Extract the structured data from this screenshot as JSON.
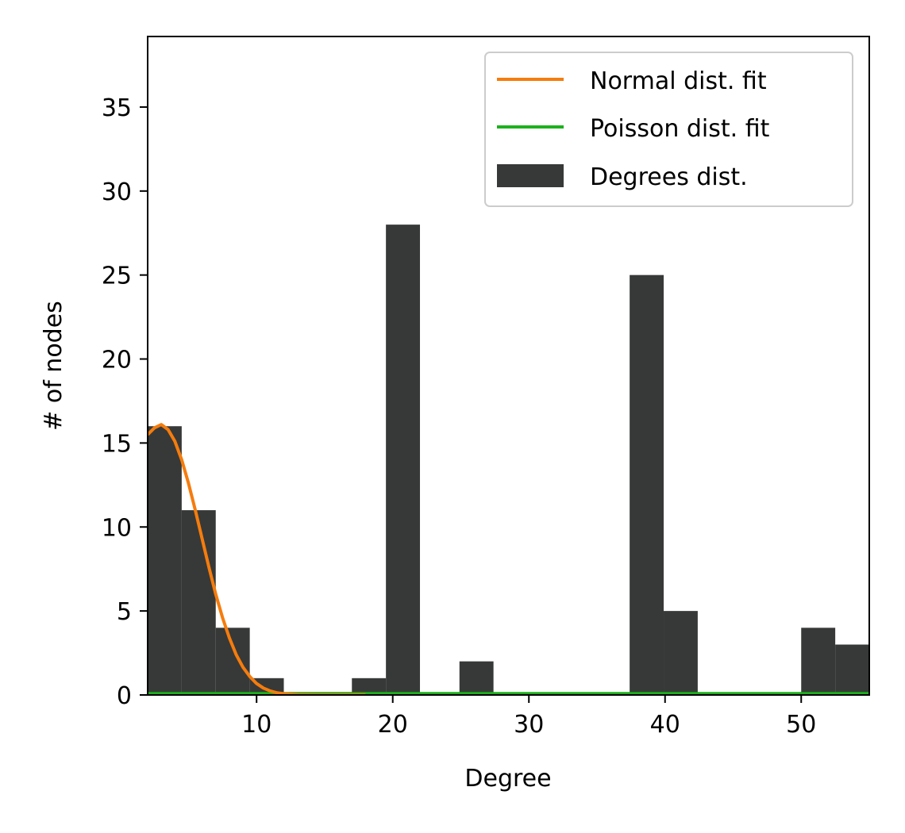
{
  "chart_data": {
    "type": "bar",
    "title": "",
    "xlabel": "Degree",
    "ylabel": "# of nodes",
    "xlim": [
      2,
      55
    ],
    "ylim": [
      0,
      39.2
    ],
    "xticks": [
      "10",
      "20",
      "30",
      "40",
      "50"
    ],
    "yticks": [
      "0",
      "5",
      "10",
      "15",
      "20",
      "25",
      "30",
      "35"
    ],
    "grid": false,
    "legend_position": "top-right",
    "bar_color": "#373938",
    "bins": [
      {
        "x0": 2.0,
        "x1": 4.5,
        "count": 16
      },
      {
        "x0": 4.5,
        "x1": 7.0,
        "count": 11
      },
      {
        "x0": 7.0,
        "x1": 9.5,
        "count": 4
      },
      {
        "x0": 9.5,
        "x1": 12.0,
        "count": 1
      },
      {
        "x0": 17.0,
        "x1": 19.5,
        "count": 1
      },
      {
        "x0": 19.5,
        "x1": 22.0,
        "count": 28
      },
      {
        "x0": 24.9,
        "x1": 27.4,
        "count": 2
      },
      {
        "x0": 37.4,
        "x1": 39.9,
        "count": 25
      },
      {
        "x0": 39.9,
        "x1": 42.4,
        "count": 5
      },
      {
        "x0": 50.0,
        "x1": 52.5,
        "count": 4
      },
      {
        "x0": 52.5,
        "x1": 55.0,
        "count": 3
      }
    ],
    "series": [
      {
        "name": "Normal dist. fit",
        "color": "#f57c0d",
        "x": [
          2,
          2.5,
          3,
          3.5,
          4,
          4.5,
          5,
          5.5,
          6,
          6.5,
          7,
          7.5,
          8,
          8.5,
          9,
          9.5,
          10,
          10.5,
          11,
          11.5,
          12,
          13,
          14,
          15,
          16,
          17,
          18
        ],
        "y": [
          15.5,
          15.9,
          16.1,
          15.8,
          15.1,
          14.0,
          12.6,
          11.0,
          9.3,
          7.6,
          6.0,
          4.6,
          3.4,
          2.4,
          1.65,
          1.1,
          0.68,
          0.41,
          0.24,
          0.13,
          0.07,
          0.02,
          0.004,
          0.001,
          0,
          0,
          0
        ]
      },
      {
        "name": "Poisson dist. fit",
        "color": "#1db11d",
        "x": [
          2,
          55
        ],
        "y": [
          0.08,
          0.08
        ]
      }
    ],
    "histogram_label": "Degrees dist."
  }
}
